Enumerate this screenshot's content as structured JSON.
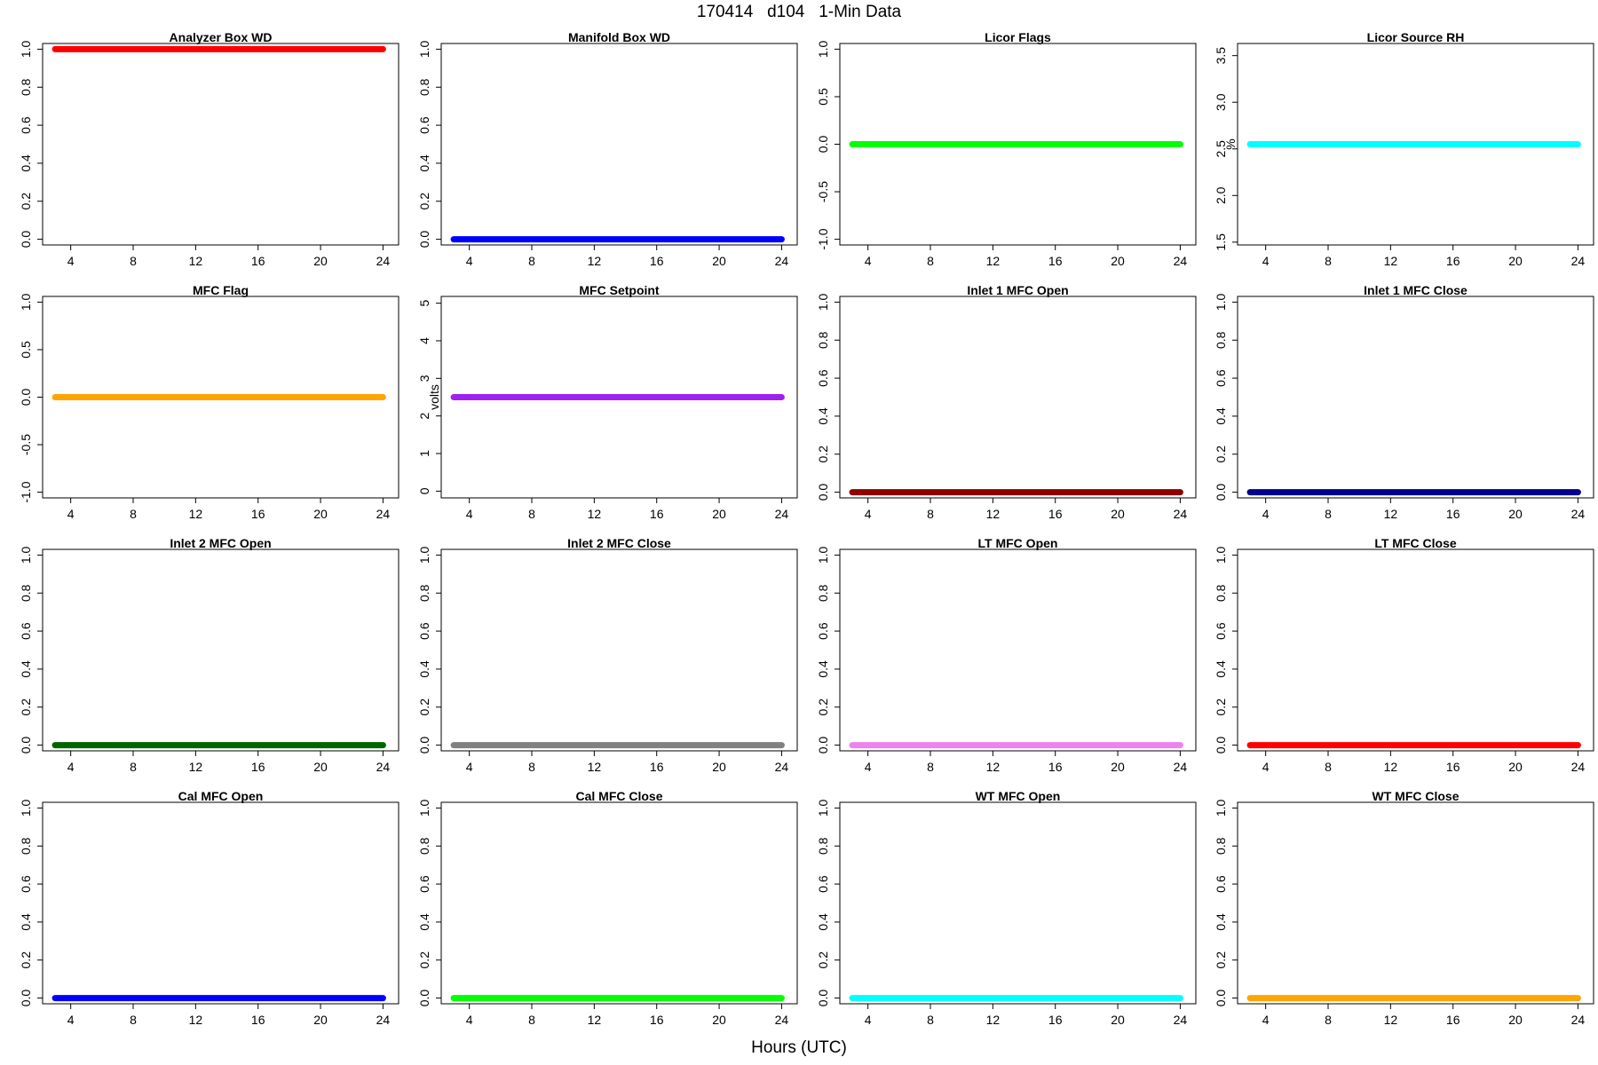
{
  "figure": {
    "title": "170414   d104   1-Min Data",
    "xlabel": "Hours (UTC)"
  },
  "chart_data": [
    {
      "type": "scatter",
      "title": "Analyzer Box WD",
      "ylabel": "",
      "x_range": [
        3,
        24
      ],
      "xlim": [
        2.2,
        25.0
      ],
      "xticks": [
        4,
        8,
        12,
        16,
        20,
        24
      ],
      "ylim": [
        -0.03,
        1.03
      ],
      "yticks": [
        "0.0",
        "0.2",
        "0.4",
        "0.6",
        "0.8",
        "1.0"
      ],
      "color": "#ff0000",
      "series": [
        {
          "x": [
            3,
            24
          ],
          "y": [
            1.0,
            1.0
          ]
        }
      ]
    },
    {
      "type": "scatter",
      "title": "Manifold Box WD",
      "ylabel": "",
      "x_range": [
        3,
        24
      ],
      "xlim": [
        2.2,
        25.0
      ],
      "xticks": [
        4,
        8,
        12,
        16,
        20,
        24
      ],
      "ylim": [
        -0.03,
        1.03
      ],
      "yticks": [
        "0.0",
        "0.2",
        "0.4",
        "0.6",
        "0.8",
        "1.0"
      ],
      "color": "#0000ff",
      "series": [
        {
          "x": [
            3,
            24
          ],
          "y": [
            0.0,
            0.0
          ]
        }
      ]
    },
    {
      "type": "scatter",
      "title": "Licor Flags",
      "ylabel": "",
      "x_range": [
        3,
        24
      ],
      "xlim": [
        2.2,
        25.0
      ],
      "xticks": [
        4,
        8,
        12,
        16,
        20,
        24
      ],
      "ylim": [
        -1.06,
        1.06
      ],
      "yticks": [
        "-1.0",
        "-0.5",
        "0.0",
        "0.5",
        "1.0"
      ],
      "color": "#00ff00",
      "series": [
        {
          "x": [
            3,
            24
          ],
          "y": [
            0.0,
            0.0
          ]
        }
      ]
    },
    {
      "type": "scatter",
      "title": "Licor Source RH",
      "ylabel": "%",
      "x_range": [
        3,
        24
      ],
      "xlim": [
        2.2,
        25.0
      ],
      "xticks": [
        4,
        8,
        12,
        16,
        20,
        24
      ],
      "ylim": [
        1.47,
        3.63
      ],
      "yticks": [
        "1.5",
        "2.0",
        "2.5",
        "3.0",
        "3.5"
      ],
      "color": "#00ffff",
      "series": [
        {
          "x": [
            3,
            24
          ],
          "y": [
            2.55,
            2.55
          ]
        }
      ]
    },
    {
      "type": "scatter",
      "title": "MFC Flag",
      "ylabel": "",
      "x_range": [
        3,
        24
      ],
      "xlim": [
        2.2,
        25.0
      ],
      "xticks": [
        4,
        8,
        12,
        16,
        20,
        24
      ],
      "ylim": [
        -1.06,
        1.06
      ],
      "yticks": [
        "-1.0",
        "-0.5",
        "0.0",
        "0.5",
        "1.0"
      ],
      "color": "#ffa500",
      "series": [
        {
          "x": [
            3,
            24
          ],
          "y": [
            0.0,
            0.0
          ]
        }
      ]
    },
    {
      "type": "scatter",
      "title": "MFC Setpoint",
      "ylabel": "volts",
      "x_range": [
        3,
        24
      ],
      "xlim": [
        2.2,
        25.0
      ],
      "xticks": [
        4,
        8,
        12,
        16,
        20,
        24
      ],
      "ylim": [
        -0.18,
        5.18
      ],
      "yticks": [
        "0",
        "1",
        "2",
        "3",
        "4",
        "5"
      ],
      "color": "#a020f0",
      "series": [
        {
          "x": [
            3,
            24
          ],
          "y": [
            2.5,
            2.5
          ]
        }
      ]
    },
    {
      "type": "scatter",
      "title": "Inlet 1 MFC Open",
      "ylabel": "",
      "x_range": [
        3,
        24
      ],
      "xlim": [
        2.2,
        25.0
      ],
      "xticks": [
        4,
        8,
        12,
        16,
        20,
        24
      ],
      "ylim": [
        -0.03,
        1.03
      ],
      "yticks": [
        "0.0",
        "0.2",
        "0.4",
        "0.6",
        "0.8",
        "1.0"
      ],
      "color": "#8b0000",
      "series": [
        {
          "x": [
            3,
            24
          ],
          "y": [
            0.0,
            0.0
          ]
        }
      ]
    },
    {
      "type": "scatter",
      "title": "Inlet 1 MFC Close",
      "ylabel": "",
      "x_range": [
        3,
        24
      ],
      "xlim": [
        2.2,
        25.0
      ],
      "xticks": [
        4,
        8,
        12,
        16,
        20,
        24
      ],
      "ylim": [
        -0.03,
        1.03
      ],
      "yticks": [
        "0.0",
        "0.2",
        "0.4",
        "0.6",
        "0.8",
        "1.0"
      ],
      "color": "#00008b",
      "series": [
        {
          "x": [
            3,
            24
          ],
          "y": [
            0.0,
            0.0
          ]
        }
      ]
    },
    {
      "type": "scatter",
      "title": "Inlet 2 MFC Open",
      "ylabel": "",
      "x_range": [
        3,
        24
      ],
      "xlim": [
        2.2,
        25.0
      ],
      "xticks": [
        4,
        8,
        12,
        16,
        20,
        24
      ],
      "ylim": [
        -0.03,
        1.03
      ],
      "yticks": [
        "0.0",
        "0.2",
        "0.4",
        "0.6",
        "0.8",
        "1.0"
      ],
      "color": "#006400",
      "series": [
        {
          "x": [
            3,
            24
          ],
          "y": [
            0.0,
            0.0
          ]
        }
      ]
    },
    {
      "type": "scatter",
      "title": "Inlet 2 MFC Close",
      "ylabel": "",
      "x_range": [
        3,
        24
      ],
      "xlim": [
        2.2,
        25.0
      ],
      "xticks": [
        4,
        8,
        12,
        16,
        20,
        24
      ],
      "ylim": [
        -0.03,
        1.03
      ],
      "yticks": [
        "0.0",
        "0.2",
        "0.4",
        "0.6",
        "0.8",
        "1.0"
      ],
      "color": "#808080",
      "series": [
        {
          "x": [
            3,
            24
          ],
          "y": [
            0.0,
            0.0
          ]
        }
      ]
    },
    {
      "type": "scatter",
      "title": "LT MFC Open",
      "ylabel": "",
      "x_range": [
        3,
        24
      ],
      "xlim": [
        2.2,
        25.0
      ],
      "xticks": [
        4,
        8,
        12,
        16,
        20,
        24
      ],
      "ylim": [
        -0.03,
        1.03
      ],
      "yticks": [
        "0.0",
        "0.2",
        "0.4",
        "0.6",
        "0.8",
        "1.0"
      ],
      "color": "#ee82ee",
      "series": [
        {
          "x": [
            3,
            24
          ],
          "y": [
            0.0,
            0.0
          ]
        }
      ]
    },
    {
      "type": "scatter",
      "title": "LT MFC Close",
      "ylabel": "",
      "x_range": [
        3,
        24
      ],
      "xlim": [
        2.2,
        25.0
      ],
      "xticks": [
        4,
        8,
        12,
        16,
        20,
        24
      ],
      "ylim": [
        -0.03,
        1.03
      ],
      "yticks": [
        "0.0",
        "0.2",
        "0.4",
        "0.6",
        "0.8",
        "1.0"
      ],
      "color": "#ff0000",
      "series": [
        {
          "x": [
            3,
            24
          ],
          "y": [
            0.0,
            0.0
          ]
        }
      ]
    },
    {
      "type": "scatter",
      "title": "Cal MFC Open",
      "ylabel": "",
      "x_range": [
        3,
        24
      ],
      "xlim": [
        2.2,
        25.0
      ],
      "xticks": [
        4,
        8,
        12,
        16,
        20,
        24
      ],
      "ylim": [
        -0.03,
        1.03
      ],
      "yticks": [
        "0.0",
        "0.2",
        "0.4",
        "0.6",
        "0.8",
        "1.0"
      ],
      "color": "#0000ff",
      "series": [
        {
          "x": [
            3,
            24
          ],
          "y": [
            0.0,
            0.0
          ]
        }
      ]
    },
    {
      "type": "scatter",
      "title": "Cal MFC Close",
      "ylabel": "",
      "x_range": [
        3,
        24
      ],
      "xlim": [
        2.2,
        25.0
      ],
      "xticks": [
        4,
        8,
        12,
        16,
        20,
        24
      ],
      "ylim": [
        -0.03,
        1.03
      ],
      "yticks": [
        "0.0",
        "0.2",
        "0.4",
        "0.6",
        "0.8",
        "1.0"
      ],
      "color": "#00ff00",
      "series": [
        {
          "x": [
            3,
            24
          ],
          "y": [
            0.0,
            0.0
          ]
        }
      ]
    },
    {
      "type": "scatter",
      "title": "WT MFC Open",
      "ylabel": "",
      "x_range": [
        3,
        24
      ],
      "xlim": [
        2.2,
        25.0
      ],
      "xticks": [
        4,
        8,
        12,
        16,
        20,
        24
      ],
      "ylim": [
        -0.03,
        1.03
      ],
      "yticks": [
        "0.0",
        "0.2",
        "0.4",
        "0.6",
        "0.8",
        "1.0"
      ],
      "color": "#00ffff",
      "series": [
        {
          "x": [
            3,
            24
          ],
          "y": [
            0.0,
            0.0
          ]
        }
      ]
    },
    {
      "type": "scatter",
      "title": "WT MFC Close",
      "ylabel": "",
      "x_range": [
        3,
        24
      ],
      "xlim": [
        2.2,
        25.0
      ],
      "xticks": [
        4,
        8,
        12,
        16,
        20,
        24
      ],
      "ylim": [
        -0.03,
        1.03
      ],
      "yticks": [
        "0.0",
        "0.2",
        "0.4",
        "0.6",
        "0.8",
        "1.0"
      ],
      "color": "#ffa500",
      "series": [
        {
          "x": [
            3,
            24
          ],
          "y": [
            0.0,
            0.0
          ]
        }
      ]
    }
  ]
}
